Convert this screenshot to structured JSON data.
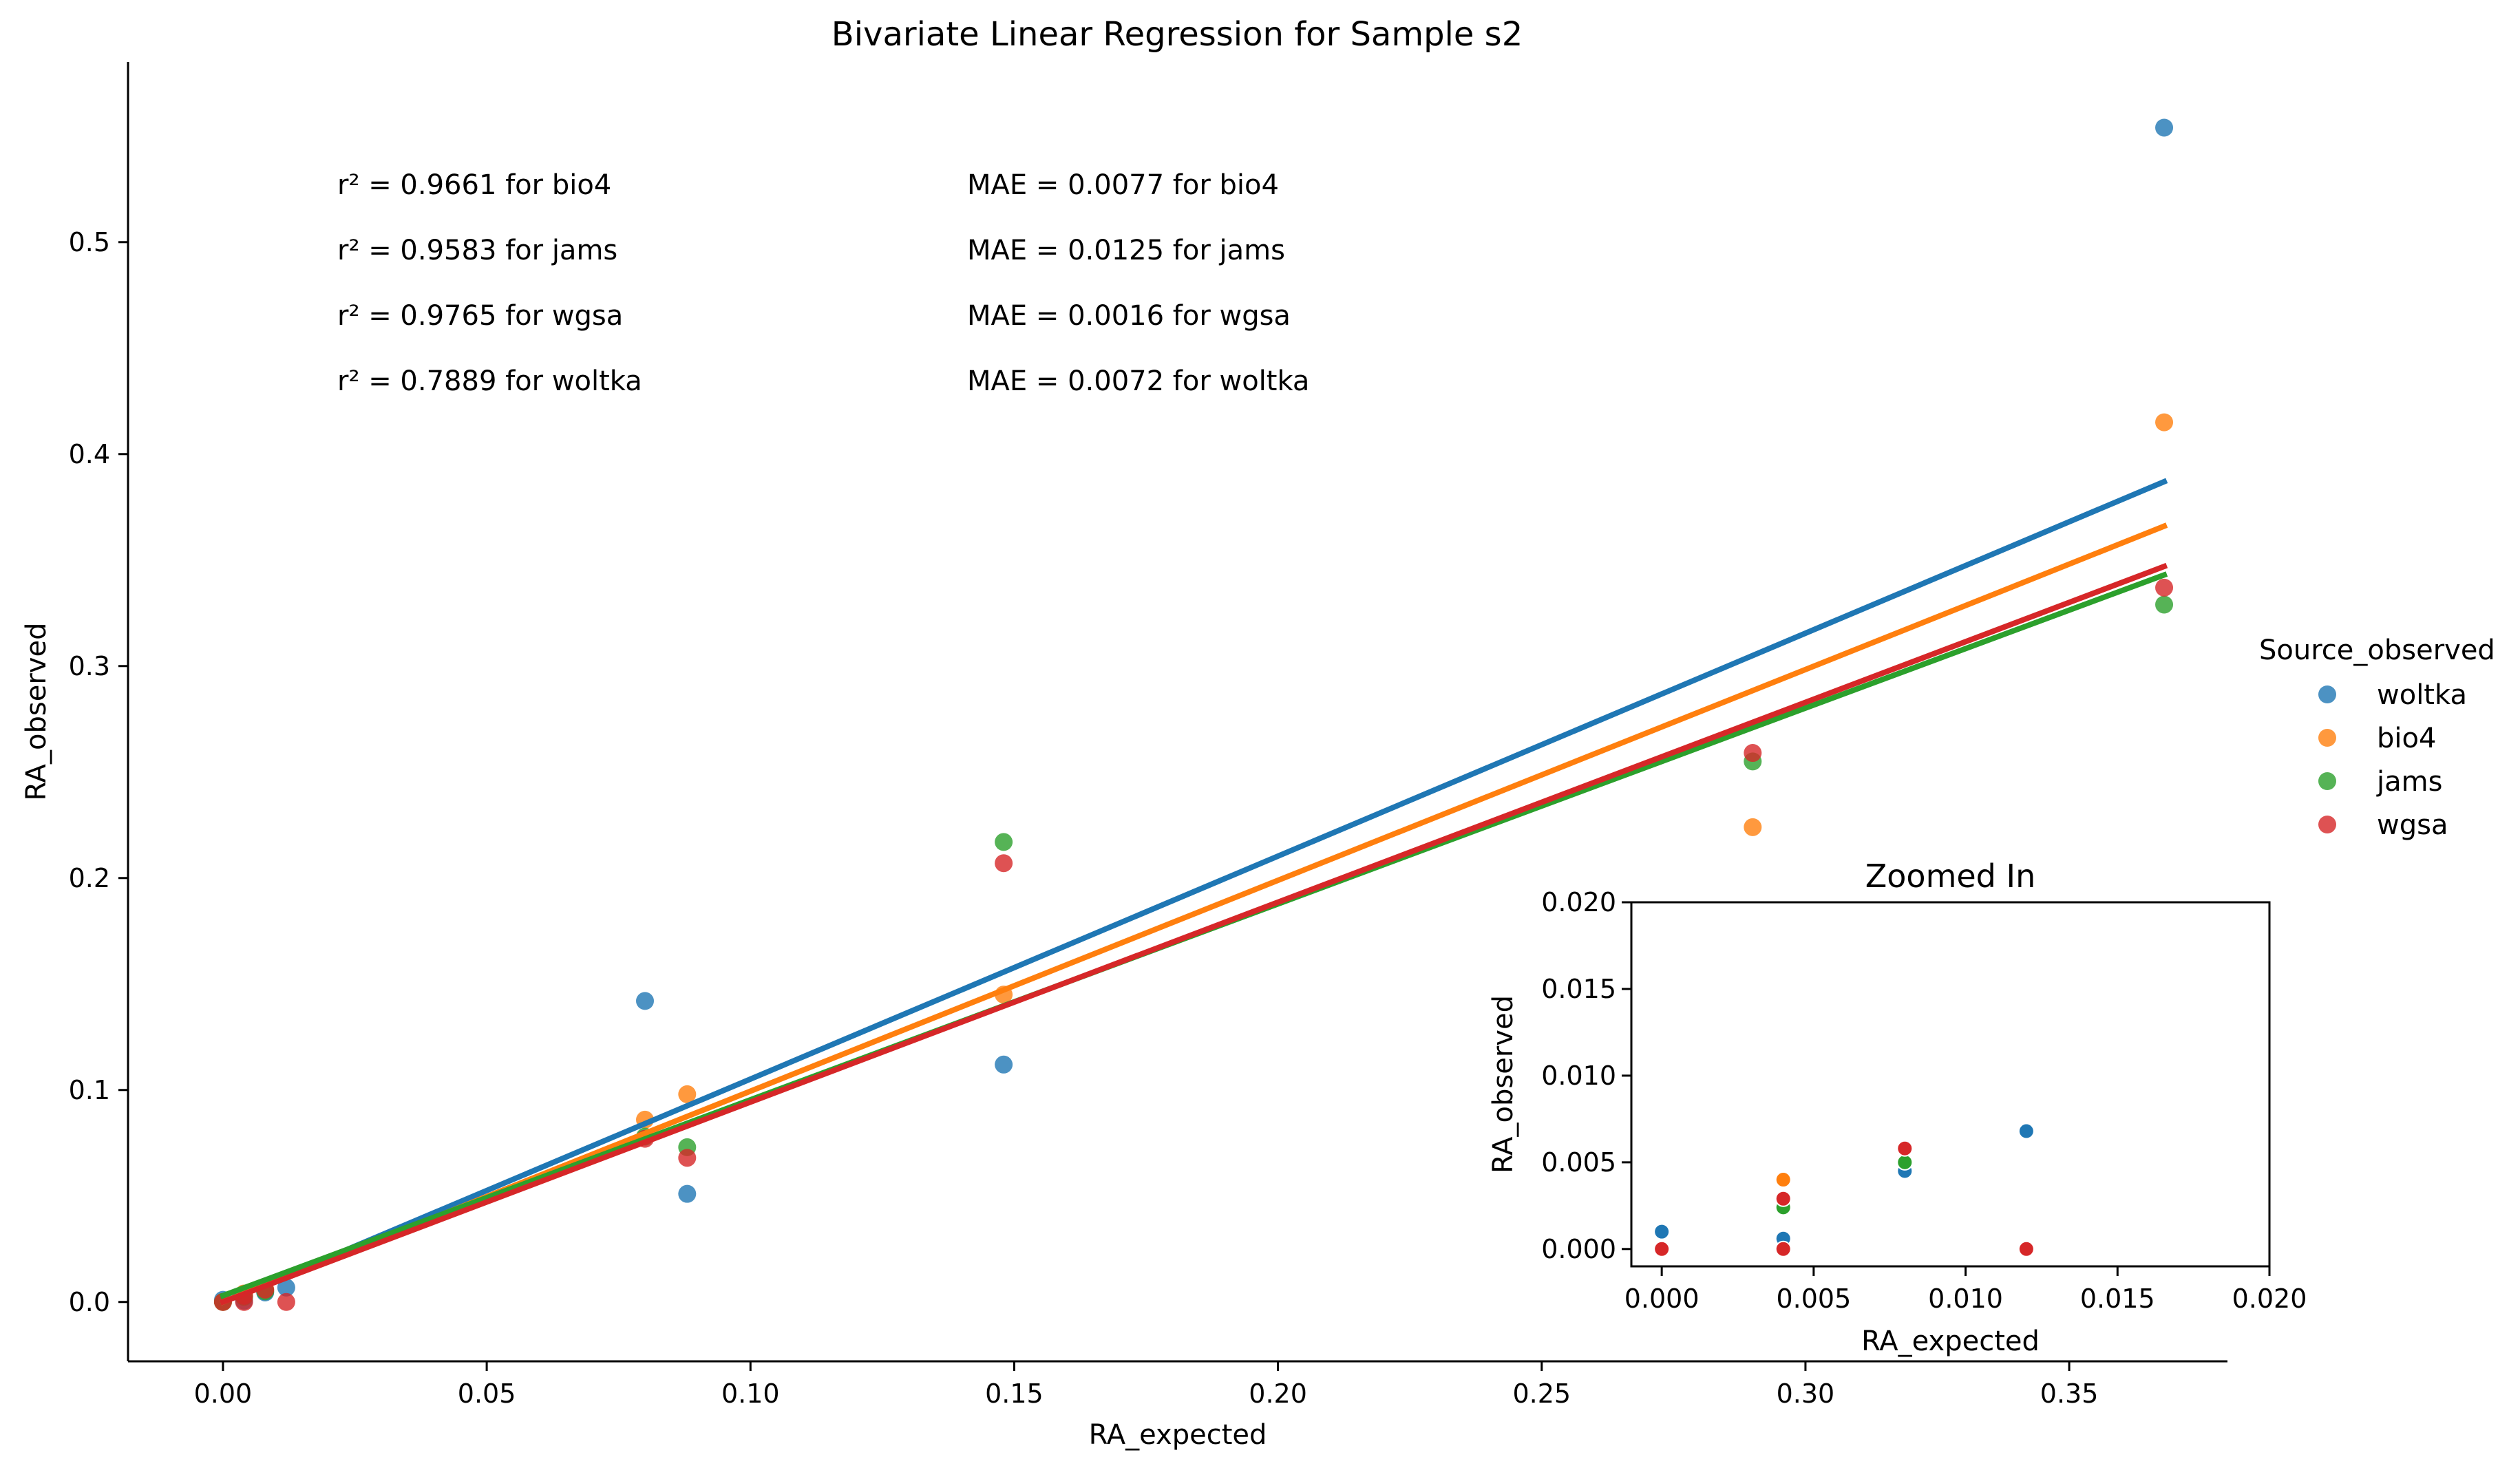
{
  "chart_data": [
    {
      "type": "scatter",
      "title": "Bivariate Linear Regression for Sample s2",
      "xlabel": "RA_expected",
      "ylabel": "RA_observed",
      "xlim": [
        -0.018,
        0.38
      ],
      "ylim": [
        -0.028,
        0.585
      ],
      "xticks": [
        0.0,
        0.05,
        0.1,
        0.15,
        0.2,
        0.25,
        0.3,
        0.35
      ],
      "xtick_labels": [
        "0.00",
        "0.05",
        "0.10",
        "0.15",
        "0.20",
        "0.25",
        "0.30",
        "0.35"
      ],
      "yticks": [
        0.0,
        0.1,
        0.2,
        0.3,
        0.4,
        0.5
      ],
      "ytick_labels": [
        "0.0",
        "0.1",
        "0.2",
        "0.3",
        "0.4",
        "0.5"
      ],
      "grid": false,
      "legend": {
        "title": "Source_observed",
        "placement": "right",
        "entries": [
          "woltka",
          "bio4",
          "jams",
          "wgsa"
        ]
      },
      "annotations_r2": [
        "r² = 0.9661 for bio4",
        "r² = 0.9583 for jams",
        "r² = 0.9765 for wgsa",
        "r² = 0.7889 for woltka"
      ],
      "annotations_mae": [
        "MAE = 0.0077 for bio4",
        "MAE = 0.0125 for jams",
        "MAE = 0.0016 for wgsa",
        "MAE = 0.0072 for woltka"
      ],
      "series": [
        {
          "name": "woltka",
          "color": "#1f77b4",
          "x": [
            0.0,
            0.004,
            0.004,
            0.008,
            0.012,
            0.08,
            0.088,
            0.148,
            0.368
          ],
          "y": [
            0.001,
            0.0026,
            0.0006,
            0.0045,
            0.0068,
            0.142,
            0.051,
            0.112,
            0.554
          ],
          "fit": [
            [
              0.0,
              0.0
            ],
            [
              0.368,
              0.387
            ]
          ]
        },
        {
          "name": "bio4",
          "color": "#ff7f0e",
          "x": [
            0.0,
            0.004,
            0.008,
            0.08,
            0.088,
            0.148,
            0.29,
            0.368
          ],
          "y": [
            0.0,
            0.004,
            0.0058,
            0.086,
            0.098,
            0.145,
            0.224,
            0.415
          ],
          "fit": [
            [
              0.0,
              0.0
            ],
            [
              0.368,
              0.366
            ]
          ]
        },
        {
          "name": "jams",
          "color": "#2ca02c",
          "x": [
            0.0,
            0.004,
            0.008,
            0.08,
            0.088,
            0.148,
            0.29,
            0.368
          ],
          "y": [
            0.0,
            0.0024,
            0.005,
            0.078,
            0.073,
            0.217,
            0.255,
            0.329
          ],
          "fit": [
            [
              0.0,
              0.003
            ],
            [
              0.368,
              0.343
            ]
          ]
        },
        {
          "name": "wgsa",
          "color": "#d62728",
          "x": [
            0.0,
            0.004,
            0.004,
            0.008,
            0.012,
            0.08,
            0.088,
            0.148,
            0.29,
            0.368
          ],
          "y": [
            0.0,
            0.0029,
            0.0,
            0.0058,
            0.0,
            0.077,
            0.068,
            0.207,
            0.259,
            0.337
          ],
          "fit": [
            [
              0.0,
              0.0
            ],
            [
              0.368,
              0.347
            ]
          ]
        }
      ]
    },
    {
      "type": "scatter",
      "title": "Zoomed In",
      "xlabel": "RA_expected",
      "ylabel": "RA_observed",
      "xlim": [
        -0.001,
        0.02
      ],
      "ylim": [
        -0.001,
        0.02
      ],
      "xticks": [
        0.0,
        0.005,
        0.01,
        0.015,
        0.02
      ],
      "xtick_labels": [
        "0.000",
        "0.005",
        "0.010",
        "0.015",
        "0.020"
      ],
      "yticks": [
        0.0,
        0.005,
        0.01,
        0.015,
        0.02
      ],
      "ytick_labels": [
        "0.000",
        "0.005",
        "0.010",
        "0.015",
        "0.020"
      ],
      "grid": false,
      "series": [
        {
          "name": "woltka",
          "color": "#1f77b4",
          "x": [
            0.0,
            0.004,
            0.004,
            0.008,
            0.012
          ],
          "y": [
            0.001,
            0.0026,
            0.0006,
            0.0045,
            0.0068
          ]
        },
        {
          "name": "bio4",
          "color": "#ff7f0e",
          "x": [
            0.0,
            0.004,
            0.008
          ],
          "y": [
            0.0,
            0.004,
            0.0058
          ]
        },
        {
          "name": "jams",
          "color": "#2ca02c",
          "x": [
            0.0,
            0.004,
            0.008
          ],
          "y": [
            0.0,
            0.0024,
            0.005
          ]
        },
        {
          "name": "wgsa",
          "color": "#d62728",
          "x": [
            0.0,
            0.004,
            0.004,
            0.008,
            0.012
          ],
          "y": [
            0.0,
            0.0029,
            0.0,
            0.0058,
            0.0
          ]
        }
      ]
    }
  ]
}
